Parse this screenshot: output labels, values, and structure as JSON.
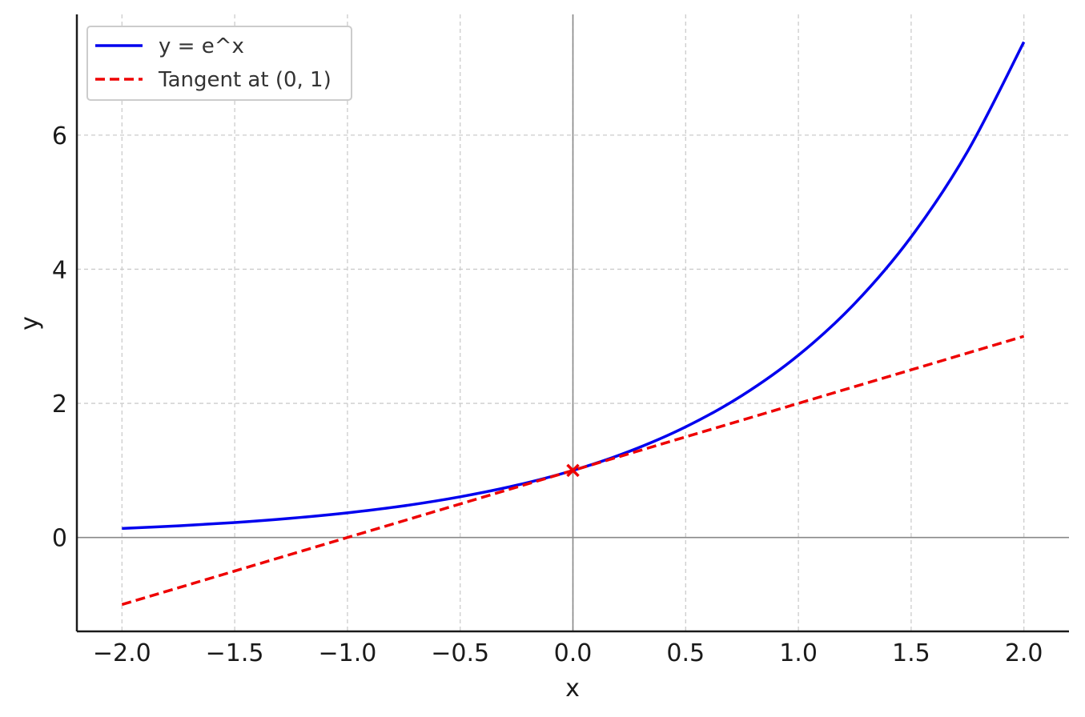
{
  "chart_data": {
    "type": "line",
    "title": "",
    "xlabel": "x",
    "ylabel": "y",
    "xlim": [
      -2.2,
      2.2
    ],
    "ylim": [
      -1.4,
      7.8
    ],
    "xticks": [
      -2.0,
      -1.5,
      -1.0,
      -0.5,
      0.0,
      0.5,
      1.0,
      1.5,
      2.0
    ],
    "xtick_labels": [
      "−2.0",
      "−1.5",
      "−1.0",
      "−0.5",
      "0.0",
      "0.5",
      "1.0",
      "1.5",
      "2.0"
    ],
    "yticks": [
      0,
      2,
      4,
      6
    ],
    "ytick_labels": [
      "0",
      "2",
      "4",
      "6"
    ],
    "grid": true,
    "legend_position": "top-left",
    "series": [
      {
        "name": "y = e^x",
        "color": "#0000ee",
        "style": "solid",
        "x": [
          -2.0,
          -1.75,
          -1.5,
          -1.25,
          -1.0,
          -0.75,
          -0.5,
          -0.25,
          0.0,
          0.25,
          0.5,
          0.75,
          1.0,
          1.25,
          1.5,
          1.75,
          2.0
        ],
        "y": [
          0.135,
          0.174,
          0.223,
          0.287,
          0.368,
          0.472,
          0.607,
          0.779,
          1.0,
          1.284,
          1.649,
          2.117,
          2.718,
          3.49,
          4.482,
          5.755,
          7.389
        ]
      },
      {
        "name": "Tangent at (0, 1)",
        "color": "#ee0000",
        "style": "dashed",
        "x": [
          -2.0,
          2.0
        ],
        "y": [
          -1.0,
          3.0
        ]
      }
    ],
    "marker": {
      "shape": "x",
      "x": 0,
      "y": 1,
      "color": "#ee0000"
    }
  }
}
